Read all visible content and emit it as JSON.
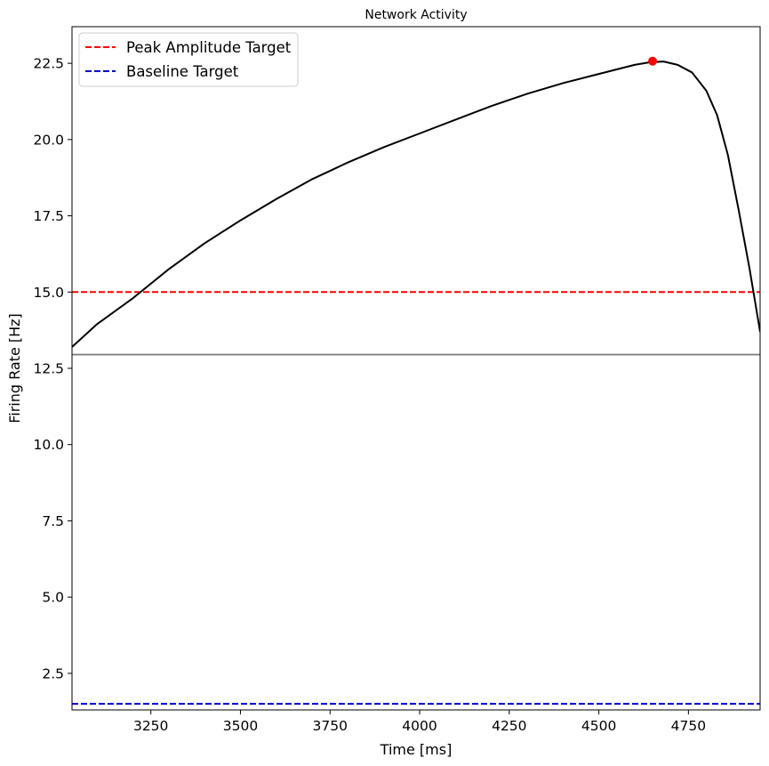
{
  "chart_data": {
    "type": "line",
    "title": "Network Activity",
    "xlabel": "Time [ms]",
    "ylabel": "Firing Rate [Hz]",
    "xlim": [
      3030,
      4950
    ],
    "ylim": [
      1.3,
      23.7
    ],
    "xticks": [
      3250,
      3500,
      3750,
      4000,
      4250,
      4500,
      4750
    ],
    "yticks": [
      2.5,
      5.0,
      7.5,
      10.0,
      12.5,
      15.0,
      17.5,
      20.0,
      22.5
    ],
    "xtick_labels": [
      "3250",
      "3500",
      "3750",
      "4000",
      "4250",
      "4500",
      "4750"
    ],
    "ytick_labels": [
      "2.5",
      "5.0",
      "7.5",
      "10.0",
      "12.5",
      "15.0",
      "17.5",
      "20.0",
      "22.5"
    ],
    "grid": false,
    "legend_position": "top-left",
    "series": [
      {
        "color": "#000000",
        "x": [
          3030,
          3100,
          3200,
          3300,
          3400,
          3500,
          3600,
          3700,
          3800,
          3900,
          4000,
          4100,
          4200,
          4300,
          4400,
          4500,
          4550,
          4600,
          4640,
          4680,
          4720,
          4760,
          4800,
          4830,
          4860,
          4890,
          4920,
          4950
        ],
        "y": [
          13.2,
          13.95,
          14.8,
          15.75,
          16.6,
          17.35,
          18.05,
          18.7,
          19.25,
          19.75,
          20.2,
          20.65,
          21.1,
          21.5,
          21.85,
          22.15,
          22.3,
          22.45,
          22.53,
          22.56,
          22.45,
          22.2,
          21.6,
          20.8,
          19.5,
          17.7,
          15.8,
          13.7
        ]
      }
    ],
    "peak_point": {
      "x": 4650,
      "y": 22.57,
      "color": "#ff0000"
    },
    "reference_lines": [
      {
        "name": "Peak Amplitude Target",
        "y": 15.0,
        "color": "#ff0000",
        "style": "dashed"
      },
      {
        "name": "Baseline Target",
        "y": 1.5,
        "color": "#0000cc",
        "style": "dashed"
      },
      {
        "y": 12.95,
        "color": "#808080",
        "style": "solid"
      }
    ]
  }
}
